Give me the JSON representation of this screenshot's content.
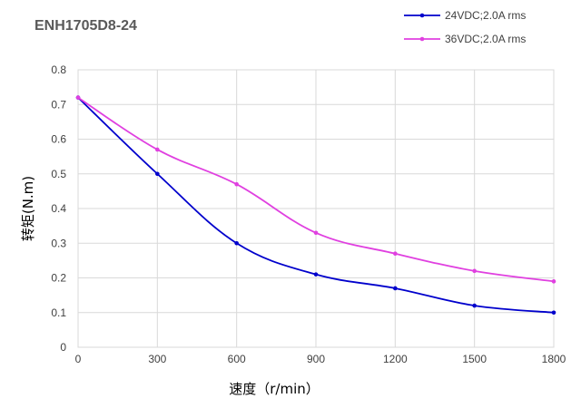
{
  "chart_data": {
    "type": "line",
    "title": "ENH1705D8-24",
    "xlabel": "速度（r/min）",
    "ylabel": "转矩(N.m)",
    "x": [
      0,
      300,
      600,
      900,
      1200,
      1500,
      1800
    ],
    "x_ticks": [
      "0",
      "300",
      "600",
      "900",
      "1200",
      "1500",
      "1800"
    ],
    "y_ticks": [
      "0",
      "0.1",
      "0.2",
      "0.3",
      "0.4",
      "0.5",
      "0.6",
      "0.7",
      "0.8"
    ],
    "xlim": [
      0,
      1800
    ],
    "ylim": [
      0,
      0.8
    ],
    "grid": true,
    "legend_position": "top-right",
    "series": [
      {
        "name": "24VDC;2.0A rms",
        "color": "#0000cc",
        "values": [
          0.72,
          0.5,
          0.3,
          0.21,
          0.17,
          0.12,
          0.1
        ]
      },
      {
        "name": "36VDC;2.0A rms",
        "color": "#e040e0",
        "values": [
          0.72,
          0.57,
          0.47,
          0.33,
          0.27,
          0.22,
          0.19
        ]
      }
    ]
  }
}
